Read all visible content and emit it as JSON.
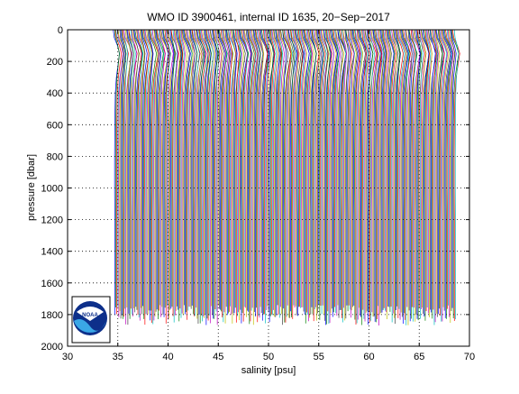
{
  "chart_data": {
    "type": "line",
    "title": "WMO ID 3900461, internal ID 1635, 20−Sep−2017",
    "xlabel": "salinity [psu]",
    "ylabel": "pressure [dbar]",
    "xlim": [
      30,
      70
    ],
    "ylim": [
      0,
      2000
    ],
    "y_reversed": true,
    "grid": "dotted",
    "x_ticks": [
      30,
      35,
      40,
      45,
      50,
      55,
      60,
      65,
      70
    ],
    "y_ticks": [
      0,
      200,
      400,
      600,
      800,
      1000,
      1200,
      1400,
      1600,
      1800,
      2000
    ],
    "profile_style": "waterfall of salinity profiles, each offset by 0.1 psu",
    "profile_count": 340,
    "first_profile_deep_salinity": 34.7,
    "offset_per_profile": 0.1,
    "max_pressure_range": [
      1740,
      1870
    ],
    "series_colors": [
      "#0000ff",
      "#008000",
      "#ff0000",
      "#00bfbf",
      "#bf00bf",
      "#bfbf00",
      "#404040"
    ],
    "profile_shape": {
      "pressure": [
        0,
        50,
        100,
        150,
        200,
        300,
        400,
        600,
        800,
        1000,
        1200,
        1400,
        1600,
        1800,
        1870
      ],
      "salinity_offset": [
        -0.15,
        -0.05,
        0.25,
        0.45,
        0.35,
        0.15,
        0.05,
        0.0,
        -0.02,
        -0.02,
        0.0,
        0.0,
        0.0,
        0.0,
        0.0
      ]
    }
  },
  "logo": {
    "text": "NOAA"
  }
}
